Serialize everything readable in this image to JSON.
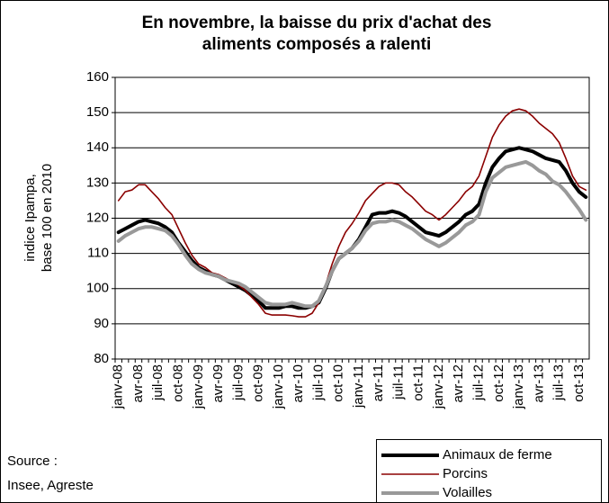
{
  "chart_data": {
    "type": "line",
    "title": [
      "En novembre, la baisse du prix d'achat des",
      "aliments composés a ralenti"
    ],
    "ylabel": [
      "indice Ipampa,",
      "base 100 en 2010"
    ],
    "source": [
      "Source :",
      "Insee, Agreste"
    ],
    "categories": [
      "janv-08",
      null,
      null,
      "avr-08",
      null,
      null,
      "juil-08",
      null,
      null,
      "oct-08",
      null,
      null,
      "janv-09",
      null,
      null,
      "avr-09",
      null,
      null,
      "juil-09",
      null,
      null,
      "oct-09",
      null,
      null,
      "janv-10",
      null,
      null,
      "avr-10",
      null,
      null,
      "juil-10",
      null,
      null,
      "oct-10",
      null,
      null,
      "janv-11",
      null,
      null,
      "avr-11",
      null,
      null,
      "juil-11",
      null,
      null,
      "oct-11",
      null,
      null,
      "janv-12",
      null,
      null,
      "avr-12",
      null,
      null,
      "juil-12",
      null,
      null,
      "oct-12",
      null,
      null,
      "janv-13",
      null,
      null,
      "avr-13",
      null,
      null,
      "juil-13",
      null,
      null,
      "oct-13",
      null
    ],
    "series": [
      {
        "name": "Animaux de ferme",
        "color": "#000000",
        "width": 4,
        "values": [
          116,
          117,
          118,
          119,
          119.5,
          119,
          118.5,
          117.5,
          116,
          113,
          110.5,
          108,
          106,
          105,
          104,
          103.5,
          102.5,
          101.5,
          100.5,
          99.5,
          98,
          96.5,
          94.5,
          94.5,
          94.5,
          95,
          95,
          94.5,
          94.5,
          95,
          96,
          100,
          105,
          108.5,
          110,
          111.5,
          114,
          117.5,
          121,
          121.5,
          121.5,
          122,
          121.5,
          120.5,
          119,
          117.5,
          116,
          115.5,
          115,
          116,
          117.5,
          119,
          121,
          122,
          124,
          130,
          134.5,
          137,
          139,
          139.5,
          140,
          139.5,
          139,
          138,
          137,
          136.5,
          136,
          133.5,
          130,
          127.5,
          126
        ]
      },
      {
        "name": "Porcins",
        "color": "#8b0000",
        "width": 1.6,
        "values": [
          125,
          127.5,
          128,
          129.5,
          129.5,
          127.5,
          125.5,
          123,
          121,
          117,
          113,
          109.5,
          107,
          106,
          104.5,
          104,
          103,
          102,
          101,
          99.5,
          97.5,
          95.5,
          93,
          92.5,
          92.5,
          92.5,
          92.3,
          92,
          92,
          93,
          96,
          101,
          107,
          112,
          116,
          118.5,
          121.5,
          125,
          127,
          129,
          130,
          130,
          129.5,
          127.5,
          126,
          124,
          122,
          121,
          119.5,
          121,
          123,
          125,
          127.5,
          129,
          132,
          137.5,
          143,
          146.5,
          149,
          150.5,
          151,
          150.5,
          149,
          147,
          145.5,
          144,
          141.5,
          137,
          132,
          129,
          128
        ]
      },
      {
        "name": "Volailles",
        "color": "#999999",
        "width": 4,
        "values": [
          113.5,
          115,
          116,
          117,
          117.5,
          117.5,
          117,
          116.5,
          115,
          112.5,
          109.5,
          107,
          105.5,
          104.5,
          104,
          103.5,
          102.5,
          102,
          101.5,
          100.5,
          99,
          97.5,
          96,
          95.5,
          95.5,
          95.5,
          96,
          95.5,
          95,
          95,
          96.5,
          100.5,
          105,
          108.5,
          110,
          111.5,
          113.5,
          116.5,
          118.5,
          119,
          119,
          119.5,
          119,
          118,
          117,
          115.5,
          114,
          113,
          112,
          113,
          114.5,
          116,
          118,
          119,
          121,
          127.5,
          131.5,
          133,
          134.5,
          135,
          135.5,
          136,
          135,
          133.5,
          132.5,
          130.5,
          129.5,
          127.5,
          125,
          122.5,
          119.5
        ]
      }
    ],
    "ylim": [
      80,
      160
    ],
    "yticks": [
      80,
      90,
      100,
      110,
      120,
      130,
      140,
      150,
      160
    ],
    "grid": true,
    "legend": "bottom-right"
  }
}
